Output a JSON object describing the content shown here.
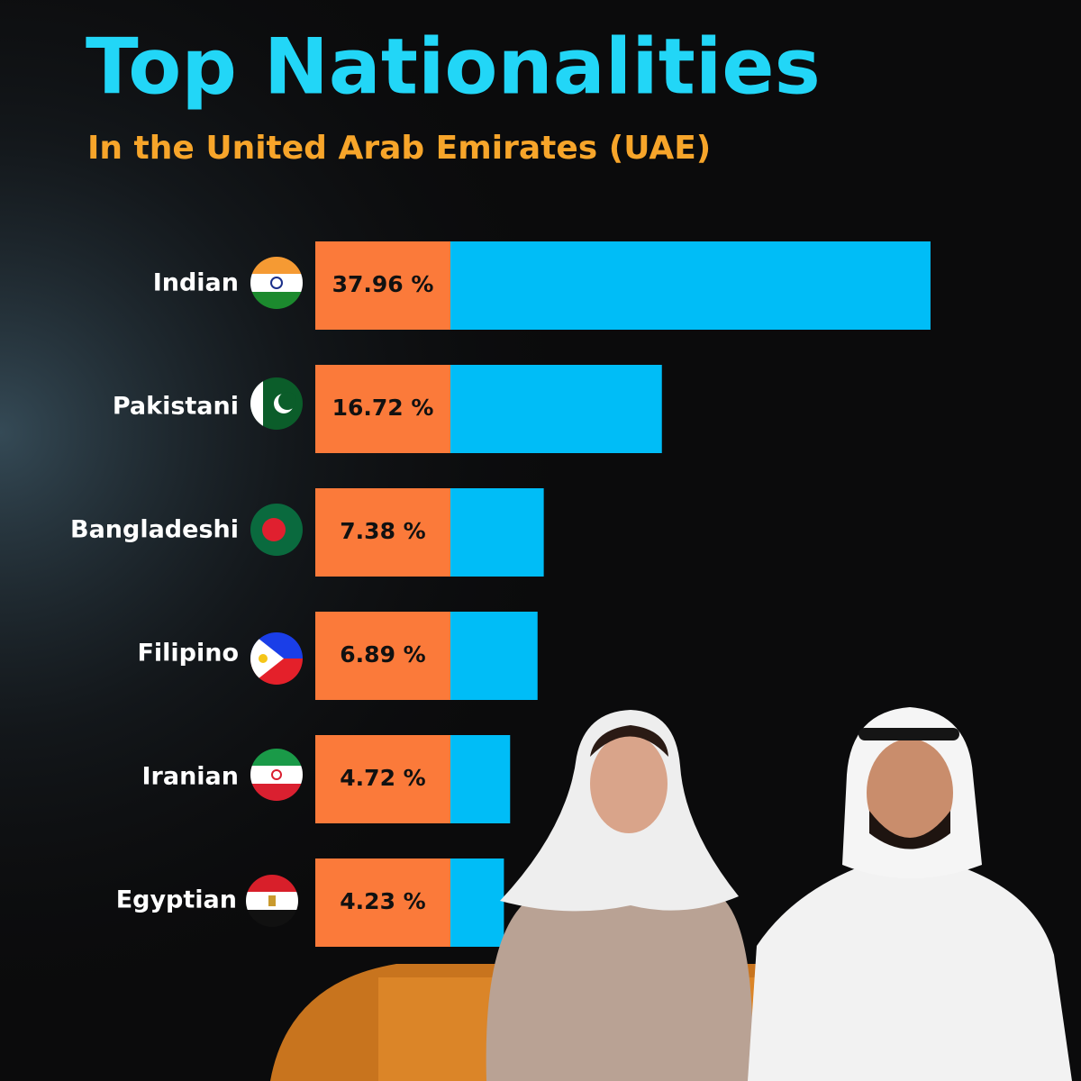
{
  "chart_data": {
    "type": "bar",
    "title": "Top Nationalities",
    "subtitle": "In the United Arab Emirates (UAE)",
    "categories": [
      "Indian",
      "Pakistani",
      "Bangladeshi",
      "Filipino",
      "Iranian",
      "Egyptian"
    ],
    "values": [
      37.96,
      16.72,
      7.38,
      6.89,
      4.72,
      4.23
    ],
    "value_labels": [
      "37.96 %",
      "16.72 %",
      "7.38 %",
      "6.89 %",
      "4.72 %",
      "4.23 %"
    ],
    "color": "#00bdf7",
    "label_box_color": "#fb7a3a"
  }
}
